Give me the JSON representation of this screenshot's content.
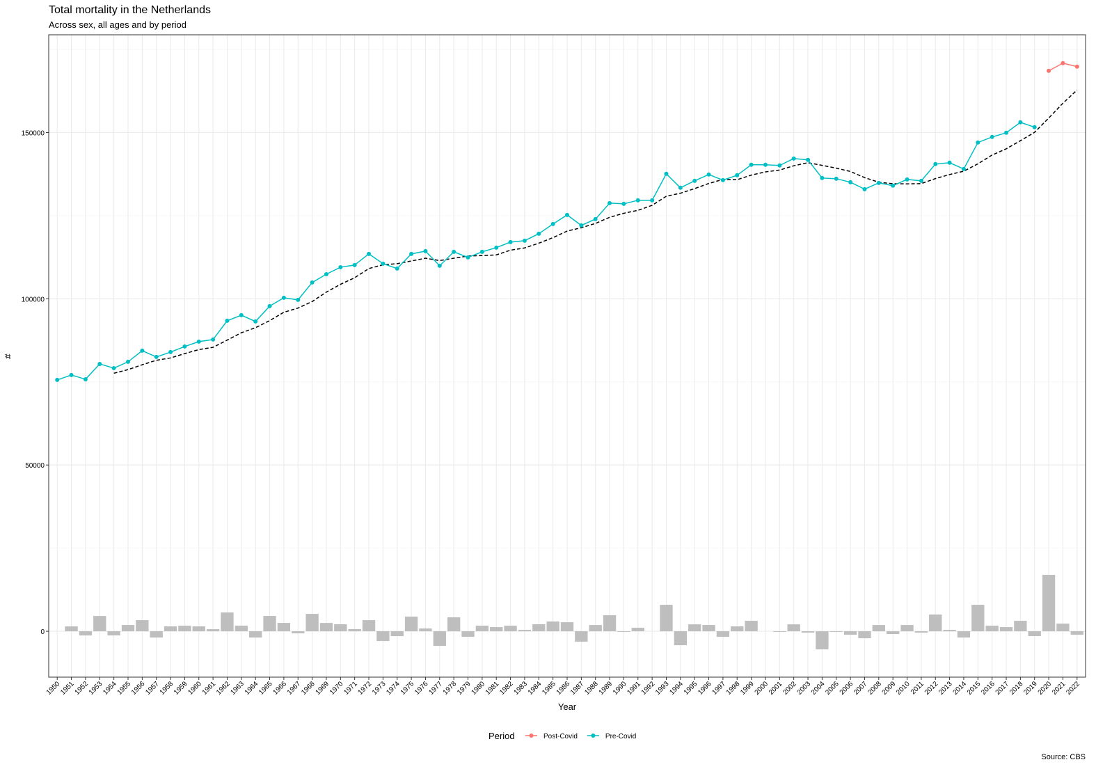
{
  "chart_data": {
    "type": "line",
    "title": "Total mortality in the Netherlands",
    "subtitle": "Across sex, all ages and by period",
    "x_label": "Year",
    "y_label": "#",
    "legend_title": "Period",
    "caption": "Source: CBS",
    "x": [
      1950,
      1951,
      1952,
      1953,
      1954,
      1955,
      1956,
      1957,
      1958,
      1959,
      1960,
      1961,
      1962,
      1963,
      1964,
      1965,
      1966,
      1967,
      1968,
      1969,
      1970,
      1971,
      1972,
      1973,
      1974,
      1975,
      1976,
      1977,
      1978,
      1979,
      1980,
      1981,
      1982,
      1983,
      1984,
      1985,
      1986,
      1987,
      1988,
      1989,
      1990,
      1991,
      1992,
      1993,
      1994,
      1995,
      1996,
      1997,
      1998,
      1999,
      2000,
      2001,
      2002,
      2003,
      2004,
      2005,
      2006,
      2007,
      2008,
      2009,
      2010,
      2011,
      2012,
      2013,
      2014,
      2015,
      2016,
      2017,
      2018,
      2019,
      2020,
      2021,
      2022
    ],
    "series": [
      {
        "name": "Post-Covid",
        "color": "#f8766d",
        "values": [
          null,
          null,
          null,
          null,
          null,
          null,
          null,
          null,
          null,
          null,
          null,
          null,
          null,
          null,
          null,
          null,
          null,
          null,
          null,
          null,
          null,
          null,
          null,
          null,
          null,
          null,
          null,
          null,
          null,
          null,
          null,
          null,
          null,
          null,
          null,
          null,
          null,
          null,
          null,
          null,
          null,
          null,
          null,
          null,
          null,
          null,
          null,
          null,
          null,
          null,
          null,
          null,
          null,
          null,
          null,
          null,
          null,
          null,
          null,
          null,
          null,
          null,
          null,
          null,
          null,
          null,
          null,
          null,
          null,
          null,
          168570,
          170870,
          169820
        ]
      },
      {
        "name": "Pre-Covid",
        "color": "#00bfc4",
        "values": [
          75600,
          77060,
          75800,
          80400,
          79150,
          81040,
          84390,
          82500,
          83970,
          85640,
          87110,
          87740,
          93390,
          95070,
          93180,
          97790,
          100300,
          99670,
          104900,
          107400,
          109500,
          110150,
          113500,
          110570,
          109100,
          113500,
          114330,
          109930,
          114120,
          112450,
          114120,
          115380,
          117050,
          117470,
          119570,
          122500,
          125220,
          122080,
          123960,
          128780,
          128570,
          129620,
          129620,
          137580,
          133390,
          135480,
          137370,
          135690,
          137160,
          140300,
          140300,
          140090,
          142180,
          141770,
          136320,
          136110,
          135060,
          132970,
          134850,
          134020,
          135900,
          135480,
          140510,
          140930,
          139040,
          147000,
          148670,
          149930,
          153070,
          151610,
          null,
          null,
          null
        ]
      }
    ],
    "moving_average": {
      "color": "#000000",
      "values": [
        null,
        null,
        null,
        null,
        77602,
        78690,
        80156,
        81496,
        82210,
        83508,
        84722,
        85392,
        87570,
        89790,
        91298,
        93434,
        95946,
        97202,
        99168,
        102012,
        104354,
        106324,
        109090,
        110224,
        110564,
        111364,
        112200,
        111486,
        112196,
        112866,
        112990,
        113200,
        114624,
        115294,
        116718,
        118394,
        120362,
        121368,
        122666,
        124508,
        125722,
        126602,
        128110,
        130834,
        131756,
        133138,
        134688,
        135902,
        135818,
        137200,
        138164,
        138708,
        140006,
        140928,
        140132,
        139294,
        138288,
        136446,
        135062,
        134602,
        134560,
        134644,
        136152,
        137368,
        138372,
        140592,
        143230,
        145114,
        147542,
        150056,
        154370,
        158810,
        162792
      ]
    },
    "differences": {
      "color": "#bebebe",
      "values": [
        null,
        1460,
        -1260,
        4600,
        -1250,
        1890,
        3350,
        -1890,
        1470,
        1670,
        1470,
        630,
        5650,
        1680,
        -1890,
        4610,
        2510,
        -630,
        5230,
        2500,
        2100,
        650,
        3350,
        -2930,
        -1470,
        4400,
        830,
        -4400,
        4190,
        -1670,
        1670,
        1260,
        1670,
        420,
        2100,
        2930,
        2720,
        -3140,
        1880,
        4820,
        -210,
        1050,
        0,
        7960,
        -4190,
        2090,
        1890,
        -1680,
        1470,
        3140,
        0,
        -210,
        2090,
        -410,
        -5450,
        -210,
        -1050,
        -2090,
        1880,
        -830,
        1880,
        -420,
        5030,
        420,
        -1890,
        7960,
        1670,
        1260,
        3140,
        -1460,
        16960,
        2300,
        -1050
      ]
    },
    "xlim": [
      1949.4,
      2022.6
    ],
    "ylim": [
      -13800,
      179400
    ],
    "yticks": [
      0,
      50000,
      100000,
      150000
    ],
    "y_minor_grid": [
      25000,
      75000,
      125000,
      175000
    ],
    "grid": true
  }
}
